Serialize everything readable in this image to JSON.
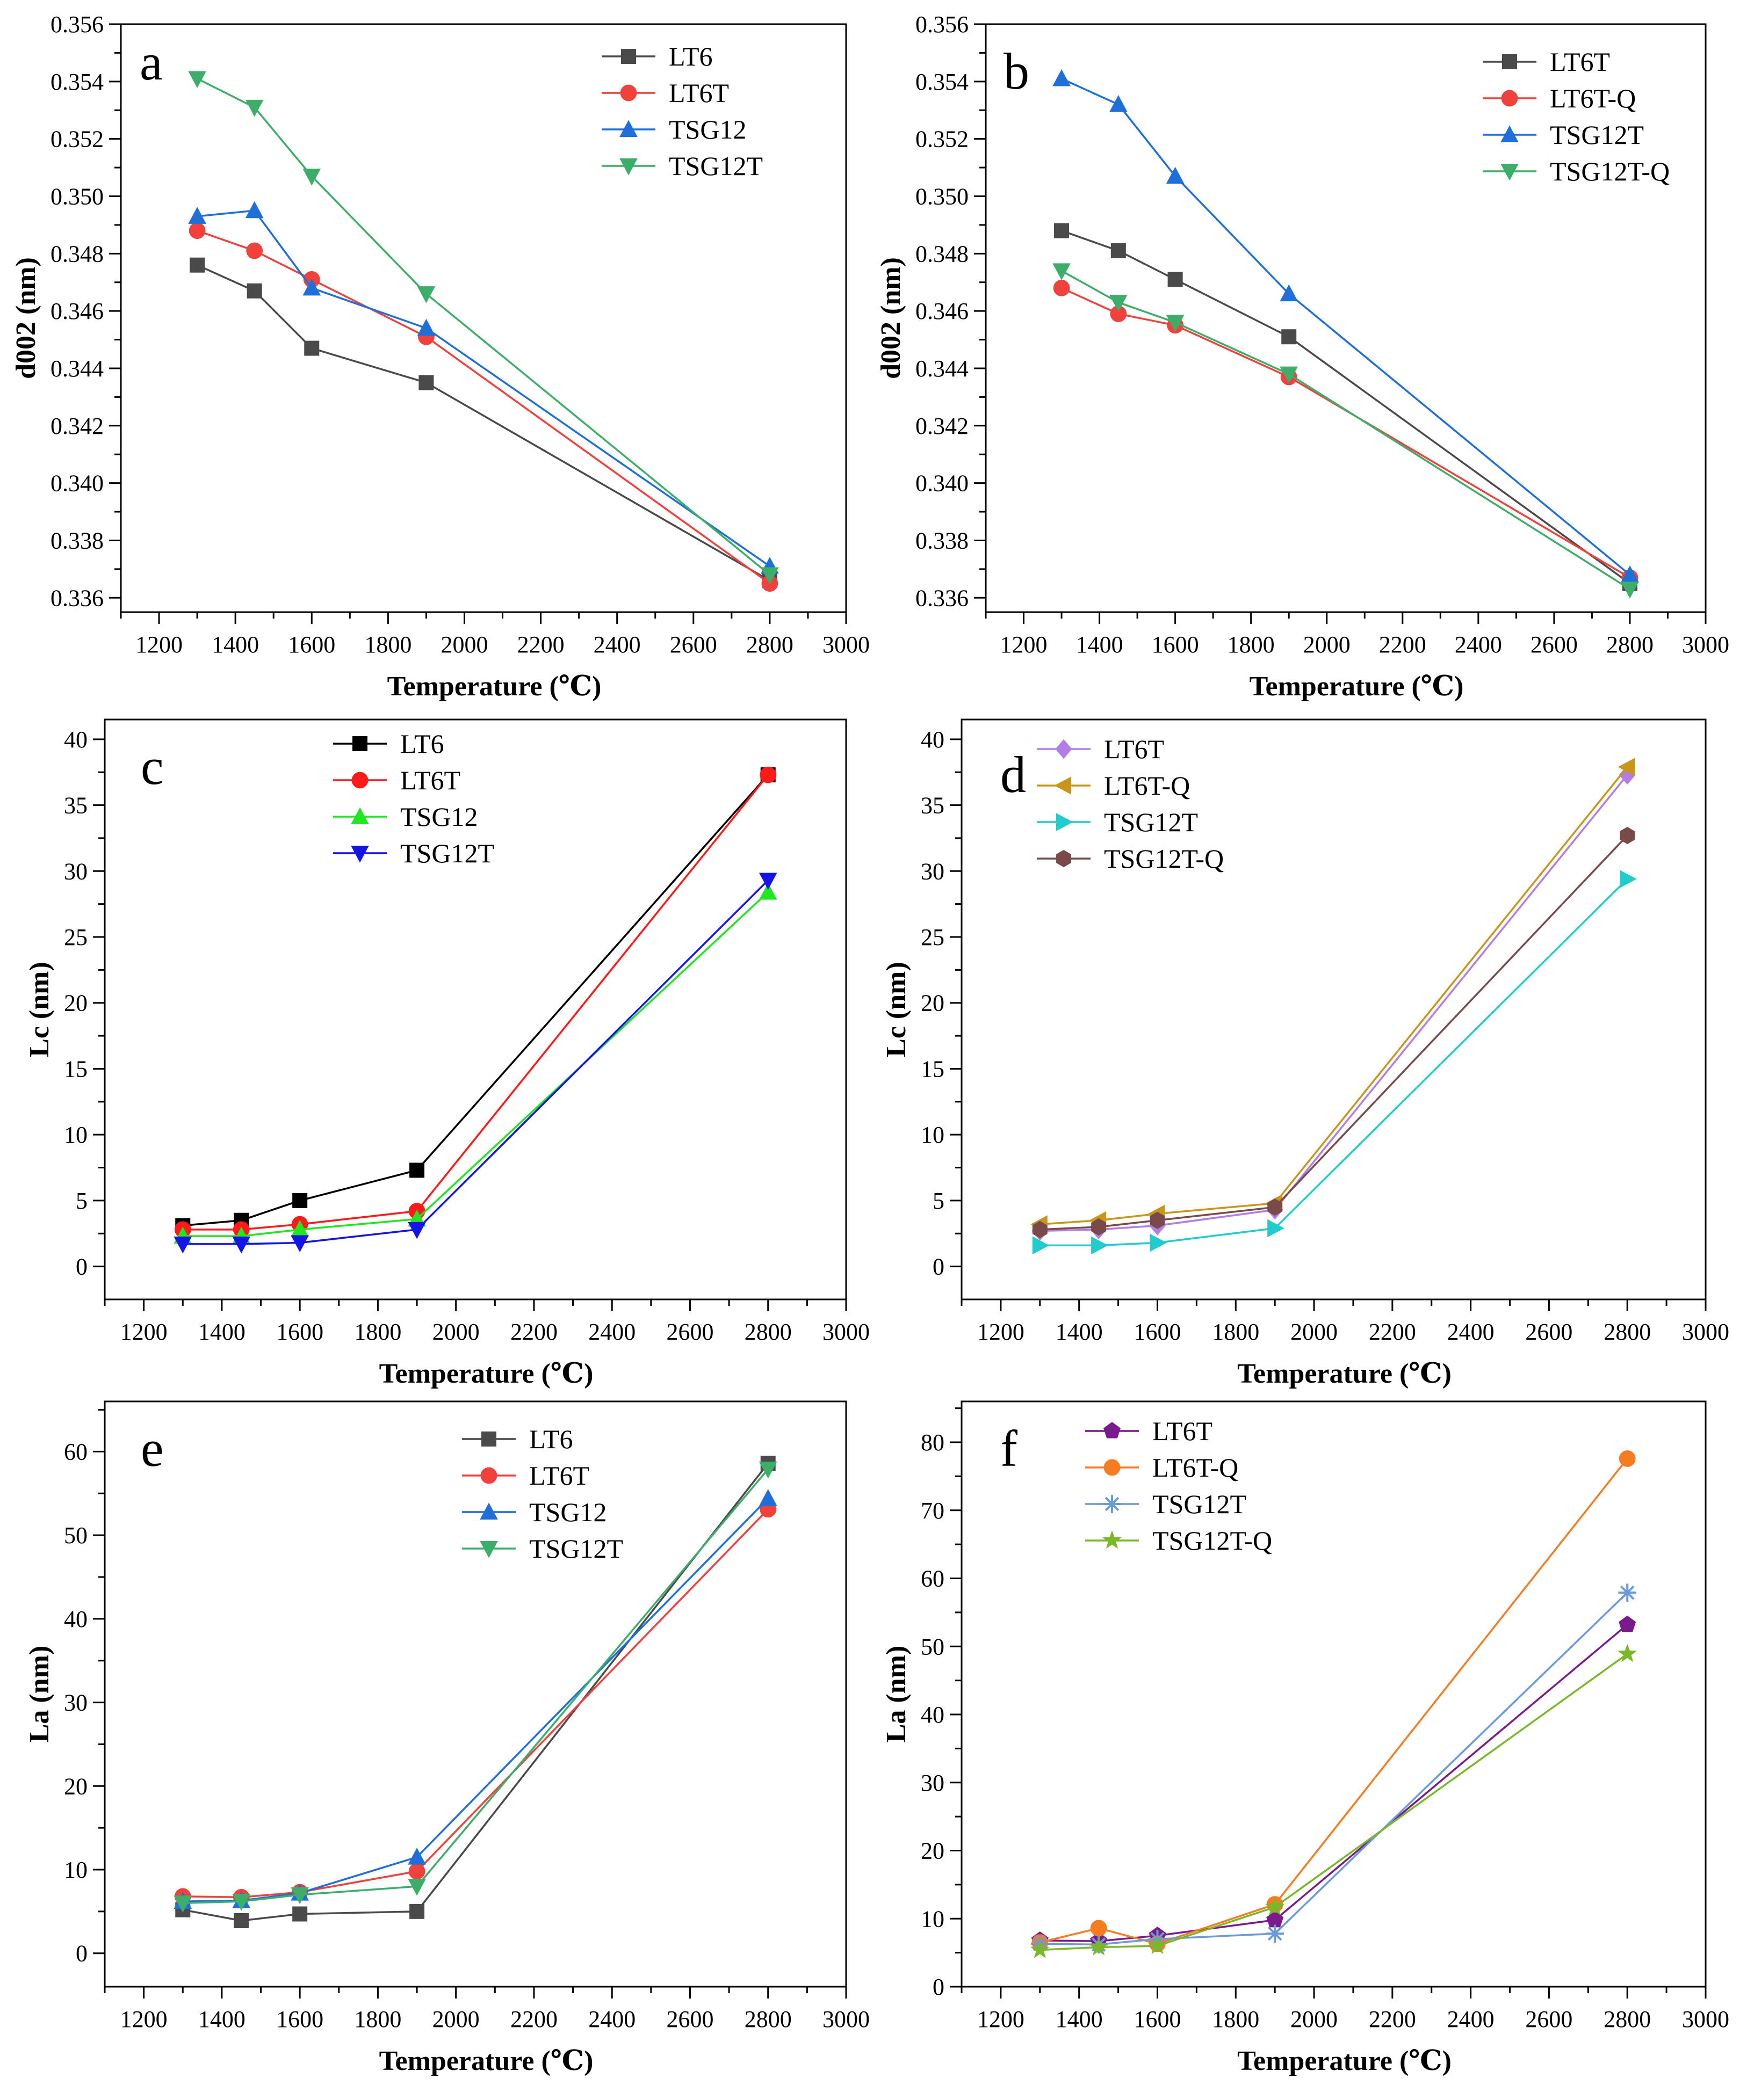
{
  "figure": {
    "colors": {
      "axis": "#000000",
      "background": "#ffffff"
    }
  },
  "chart_data": [
    {
      "id": "a",
      "panel_label": "a",
      "type": "line",
      "xlabel": "Temperature (℃)",
      "ylabel": "d002 (nm)",
      "xlim": [
        1100,
        3000
      ],
      "ylim": [
        0.3355,
        0.356
      ],
      "xticks": [
        "1200",
        "1400",
        "1600",
        "1800",
        "2000",
        "2200",
        "2400",
        "2600",
        "2800",
        "3000"
      ],
      "yticks": [
        "0.336",
        "0.338",
        "0.340",
        "0.342",
        "0.344",
        "0.346",
        "0.348",
        "0.350",
        "0.352",
        "0.354",
        "0.356"
      ],
      "x": [
        1300,
        1450,
        1600,
        1900,
        2800
      ],
      "legend_position": "top-right",
      "series": [
        {
          "name": "LT6",
          "color": "#4a4a4a",
          "marker": "square",
          "values": [
            0.3476,
            0.3467,
            0.3447,
            0.3435,
            0.3366
          ]
        },
        {
          "name": "LT6T",
          "color": "#f0413c",
          "marker": "circle",
          "values": [
            0.3488,
            0.3481,
            0.3471,
            0.3451,
            0.3365
          ]
        },
        {
          "name": "TSG12",
          "color": "#1e6fd9",
          "marker": "triangle-up",
          "values": [
            0.3493,
            0.3495,
            0.3468,
            0.3454,
            0.3371
          ]
        },
        {
          "name": "TSG12T",
          "color": "#3dae6a",
          "marker": "triangle-down",
          "values": [
            0.3541,
            0.3531,
            0.3507,
            0.3466,
            0.3368
          ]
        }
      ]
    },
    {
      "id": "b",
      "panel_label": "b",
      "type": "line",
      "xlabel": "Temperature (℃)",
      "ylabel": "d002 (nm)",
      "xlim": [
        1100,
        3000
      ],
      "ylim": [
        0.3355,
        0.356
      ],
      "xticks": [
        "1200",
        "1400",
        "1600",
        "1800",
        "2000",
        "2200",
        "2400",
        "2600",
        "2800",
        "3000"
      ],
      "yticks": [
        "0.336",
        "0.338",
        "0.340",
        "0.342",
        "0.344",
        "0.346",
        "0.348",
        "0.350",
        "0.352",
        "0.354",
        "0.356"
      ],
      "x": [
        1300,
        1450,
        1600,
        1900,
        2800
      ],
      "legend_position": "top-right",
      "series": [
        {
          "name": "LT6T",
          "color": "#4a4a4a",
          "marker": "square",
          "values": [
            0.3488,
            0.3481,
            0.3471,
            0.3451,
            0.3365
          ]
        },
        {
          "name": "LT6T-Q",
          "color": "#f0413c",
          "marker": "circle",
          "values": [
            0.3468,
            0.3459,
            0.3455,
            0.3437,
            0.3367
          ]
        },
        {
          "name": "TSG12T",
          "color": "#1e6fd9",
          "marker": "triangle-up",
          "values": [
            0.3541,
            0.3532,
            0.3507,
            0.3466,
            0.3368
          ]
        },
        {
          "name": "TSG12T-Q",
          "color": "#3dae6a",
          "marker": "triangle-down",
          "values": [
            0.3474,
            0.3463,
            0.3456,
            0.3438,
            0.3363
          ]
        }
      ]
    },
    {
      "id": "c",
      "panel_label": "c",
      "type": "line",
      "xlabel": "Temperature (℃)",
      "ylabel": "Lc (nm)",
      "xlim": [
        1100,
        3000
      ],
      "ylim": [
        -2.5,
        41.5
      ],
      "xticks": [
        "1200",
        "1400",
        "1600",
        "1800",
        "2000",
        "2200",
        "2400",
        "2600",
        "2800",
        "3000"
      ],
      "yticks": [
        "0",
        "5",
        "10",
        "15",
        "20",
        "25",
        "30",
        "35",
        "40"
      ],
      "x": [
        1300,
        1450,
        1600,
        1900,
        2800
      ],
      "legend_position": "top-left",
      "series": [
        {
          "name": "LT6",
          "color": "#000000",
          "marker": "square",
          "values": [
            3.1,
            3.5,
            5.0,
            7.3,
            37.3
          ]
        },
        {
          "name": "LT6T",
          "color": "#ff1a1a",
          "marker": "circle",
          "values": [
            2.8,
            2.8,
            3.2,
            4.2,
            37.3
          ]
        },
        {
          "name": "TSG12",
          "color": "#22e622",
          "marker": "triangle-up",
          "values": [
            2.3,
            2.3,
            2.8,
            3.6,
            28.4
          ]
        },
        {
          "name": "TSG12T",
          "color": "#1414e6",
          "marker": "triangle-down",
          "values": [
            1.7,
            1.7,
            1.8,
            2.8,
            29.3
          ]
        }
      ]
    },
    {
      "id": "d",
      "panel_label": "d",
      "type": "line",
      "xlabel": "Temperature (℃)",
      "ylabel": "Lc (nm)",
      "xlim": [
        1100,
        3000
      ],
      "ylim": [
        -2.5,
        41.5
      ],
      "xticks": [
        "1200",
        "1400",
        "1600",
        "1800",
        "2000",
        "2200",
        "2400",
        "2600",
        "2800",
        "3000"
      ],
      "yticks": [
        "0",
        "5",
        "10",
        "15",
        "20",
        "25",
        "30",
        "35",
        "40"
      ],
      "x": [
        1300,
        1450,
        1600,
        1900,
        2800
      ],
      "legend_position": "top-left",
      "series": [
        {
          "name": "LT6T",
          "color": "#b27de6",
          "marker": "diamond",
          "values": [
            2.7,
            2.8,
            3.1,
            4.3,
            37.3
          ]
        },
        {
          "name": "LT6T-Q",
          "color": "#c9961a",
          "marker": "triangle-left",
          "values": [
            3.2,
            3.5,
            4.0,
            4.8,
            37.9
          ]
        },
        {
          "name": "TSG12T",
          "color": "#22cccc",
          "marker": "triangle-right",
          "values": [
            1.6,
            1.6,
            1.8,
            2.9,
            29.4
          ]
        },
        {
          "name": "TSG12T-Q",
          "color": "#7a4a4a",
          "marker": "hexagon",
          "values": [
            2.8,
            3.0,
            3.5,
            4.5,
            32.7
          ]
        }
      ]
    },
    {
      "id": "e",
      "panel_label": "e",
      "type": "line",
      "xlabel": "Temperature (℃)",
      "ylabel": "La (nm)",
      "xlim": [
        1100,
        3000
      ],
      "ylim": [
        -4,
        66
      ],
      "xticks": [
        "1200",
        "1400",
        "1600",
        "1800",
        "2000",
        "2200",
        "2400",
        "2600",
        "2800",
        "3000"
      ],
      "yticks": [
        "0",
        "10",
        "20",
        "30",
        "40",
        "50",
        "60"
      ],
      "x": [
        1300,
        1450,
        1600,
        1900,
        2800
      ],
      "legend_position": "top-right",
      "series": [
        {
          "name": "LT6",
          "color": "#4a4a4a",
          "marker": "square",
          "values": [
            5.2,
            3.9,
            4.7,
            5.0,
            58.6
          ]
        },
        {
          "name": "LT6T",
          "color": "#f0413c",
          "marker": "circle",
          "values": [
            6.8,
            6.7,
            7.3,
            9.8,
            53.1
          ]
        },
        {
          "name": "TSG12",
          "color": "#1e6fd9",
          "marker": "triangle-up",
          "values": [
            6.2,
            6.3,
            7.2,
            11.5,
            54.4
          ]
        },
        {
          "name": "TSG12T",
          "color": "#3dae6a",
          "marker": "triangle-down",
          "values": [
            6.0,
            6.2,
            7.0,
            8.0,
            57.9
          ]
        }
      ]
    },
    {
      "id": "f",
      "panel_label": "f",
      "type": "line",
      "xlabel": "Temperature (℃)",
      "ylabel": "La (nm)",
      "xlim": [
        1100,
        3000
      ],
      "ylim": [
        0,
        86
      ],
      "xticks": [
        "1200",
        "1400",
        "1600",
        "1800",
        "2000",
        "2200",
        "2400",
        "2600",
        "2800",
        "3000"
      ],
      "yticks": [
        "0",
        "10",
        "20",
        "30",
        "40",
        "50",
        "60",
        "70",
        "80"
      ],
      "x": [
        1300,
        1450,
        1600,
        1900,
        2800
      ],
      "legend_position": "top-left",
      "series": [
        {
          "name": "LT6T",
          "color": "#7a1a8c",
          "marker": "pentagon",
          "values": [
            6.8,
            6.7,
            7.5,
            9.8,
            53.2
          ]
        },
        {
          "name": "LT6T-Q",
          "color": "#f57c20",
          "marker": "circle",
          "values": [
            6.5,
            8.6,
            6.3,
            12.1,
            77.6
          ]
        },
        {
          "name": "TSG12T",
          "color": "#6a9ad9",
          "marker": "asterisk",
          "values": [
            6.3,
            6.2,
            7.0,
            7.8,
            57.9
          ]
        },
        {
          "name": "TSG12T-Q",
          "color": "#7ab82a",
          "marker": "star",
          "values": [
            5.4,
            5.8,
            6.0,
            11.7,
            48.9
          ]
        }
      ]
    }
  ]
}
